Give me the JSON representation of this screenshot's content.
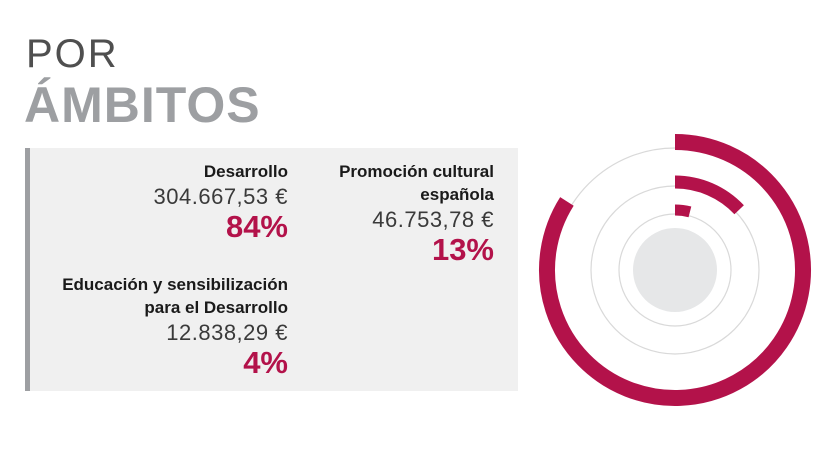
{
  "title": {
    "line1": "POR",
    "line2": "ÁMBITOS"
  },
  "items": [
    {
      "name": "Desarrollo",
      "amount": "304.667,53 €",
      "percent": "84%"
    },
    {
      "name": "Promoción cultural española",
      "amount": "46.753,78 €",
      "percent": "13%"
    },
    {
      "name": "Educación y sensibilización para el Desarrollo",
      "amount": "12.838,29 €",
      "percent": "4%"
    }
  ],
  "colors": {
    "accent": "#b3124a",
    "ring_track": "#d9d9d9",
    "center": "#e6e7e8",
    "panel": "#f0f0f0",
    "title_gray": "#9d9fa2"
  },
  "chart_data": {
    "type": "pie",
    "style": "radial-bars",
    "categories": [
      "Desarrollo",
      "Promoción cultural española",
      "Educación y sensibilización para el Desarrollo"
    ],
    "values": [
      84,
      13,
      4
    ],
    "unit": "%",
    "amounts": [
      304667.53,
      46753.78,
      12838.29
    ],
    "currency": "€"
  }
}
